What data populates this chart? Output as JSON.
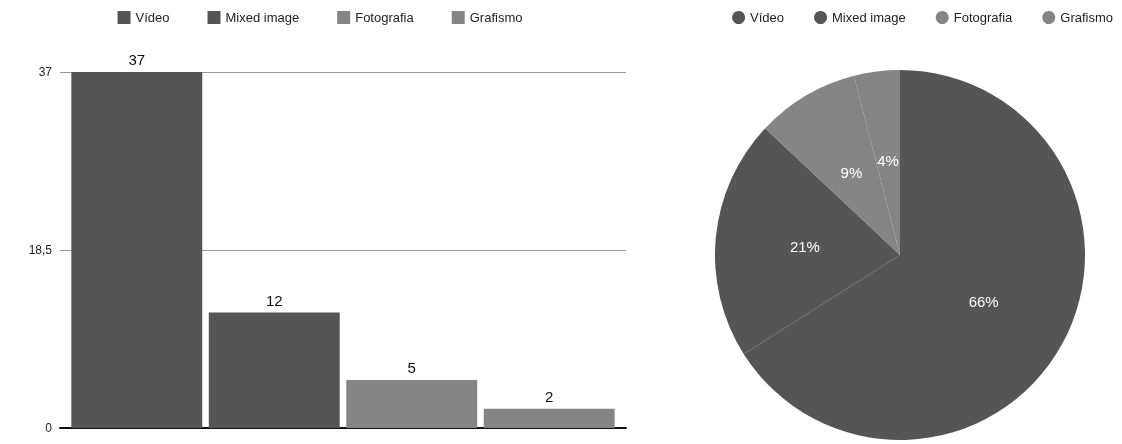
{
  "chart_data": [
    {
      "type": "bar",
      "categories": [
        null
      ],
      "series": [
        {
          "name": "Vídeo",
          "color": "#555555",
          "values": [
            37
          ]
        },
        {
          "name": "Mixed image",
          "color": "#555555",
          "values": [
            12
          ]
        },
        {
          "name": "Fotografia",
          "color": "#858585",
          "values": [
            5
          ]
        },
        {
          "name": "Grafismo",
          "color": "#858585",
          "values": [
            2
          ]
        }
      ],
      "ylim": [
        0,
        37
      ],
      "yticks": [
        0,
        {
          "value": 18.5,
          "label": "18,5"
        },
        37
      ],
      "grid": "y",
      "legend": "top",
      "data_labels": true
    },
    {
      "type": "pie",
      "categories": [
        "Vídeo",
        "Mixed image",
        "Fotografia",
        "Grafismo"
      ],
      "values": [
        66,
        21,
        9,
        4
      ],
      "colors": [
        "#555555",
        "#555555",
        "#858585",
        "#858585"
      ],
      "legend": "top right",
      "value_labels": [
        "66%",
        "21%",
        "9%",
        "4%"
      ]
    }
  ]
}
